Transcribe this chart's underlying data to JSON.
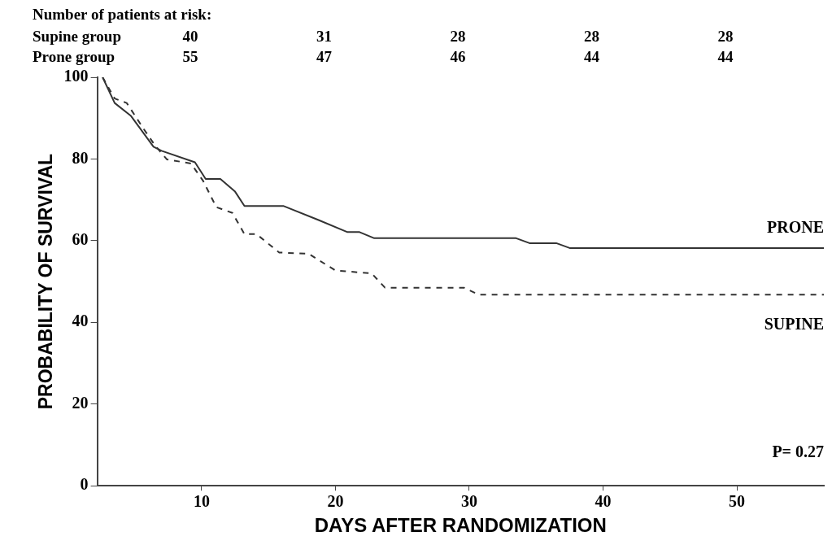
{
  "chart_data": {
    "type": "line",
    "xlabel": "DAYS AFTER RANDOMIZATION",
    "ylabel": "PROBABILITY OF SURVIVAL",
    "xlim": [
      2.2,
      56.5
    ],
    "xticks": [
      10,
      20,
      30,
      40,
      50
    ],
    "ylim": [
      0,
      100
    ],
    "yticks": [
      0,
      20,
      40,
      60,
      80,
      100
    ],
    "grid": false,
    "legend": false,
    "marker": "none",
    "series": [
      {
        "name": "PRONE",
        "color": "#333333",
        "line_style": "solid",
        "x": [
          2.6,
          3.5,
          4.7,
          6.4,
          7.0,
          9.5,
          10.3,
          11.4,
          12.5,
          13.2,
          16.1,
          18.7,
          20.9,
          21.8,
          22.9,
          33.5,
          34.5,
          36.5,
          37.5,
          56.5
        ],
        "values": [
          100,
          93.7,
          90.6,
          83,
          82,
          79.2,
          75.1,
          75.1,
          72,
          68.5,
          68.5,
          65.1,
          62.1,
          62.1,
          60.6,
          60.6,
          59.4,
          59.4,
          58.2,
          58.2
        ]
      },
      {
        "name": "SUPINE",
        "color": "#333333",
        "line_style": "dashed",
        "x": [
          2.6,
          3.5,
          4.4,
          5.7,
          6.5,
          7.4,
          9.2,
          10.1,
          11.1,
          12.3,
          13.2,
          14.1,
          15.8,
          18.0,
          20.0,
          22.7,
          23.7,
          29.6,
          30.7,
          56.5
        ],
        "values": [
          100,
          94.8,
          93.7,
          87.2,
          83.4,
          79.9,
          78.9,
          74.7,
          68.2,
          66.8,
          61.6,
          61.6,
          57.1,
          56.8,
          52.7,
          52,
          48.5,
          48.5,
          46.8,
          46.8
        ]
      }
    ],
    "annotations": [
      "Number of patients at risk:",
      "Supine group",
      "40",
      "31",
      "28",
      "28",
      "28",
      "Prone group",
      "55",
      "47",
      "46",
      "44",
      "44",
      "P= 0.27"
    ]
  }
}
